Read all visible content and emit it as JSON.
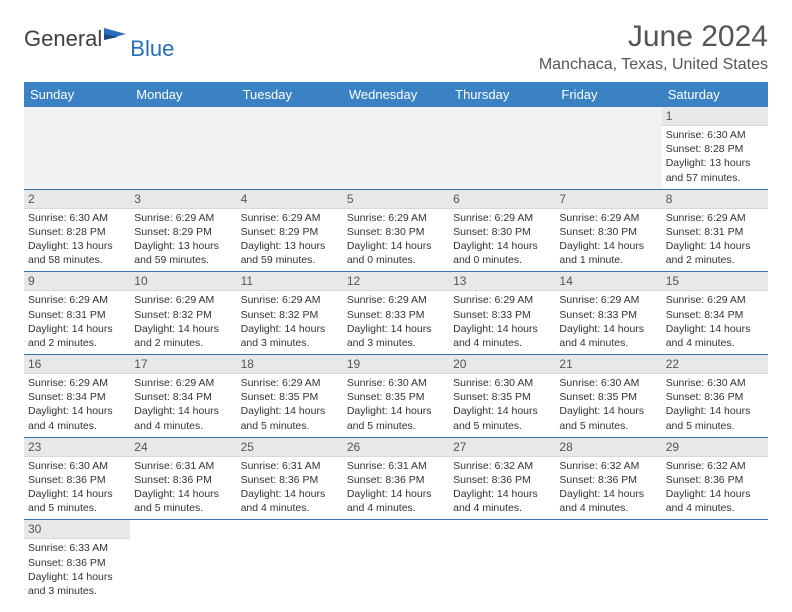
{
  "logo": {
    "main": "General",
    "accent": "Blue"
  },
  "title": "June 2024",
  "location": "Manchaca, Texas, United States",
  "colors": {
    "header_bg": "#3a82c4",
    "header_text": "#ffffff",
    "daynum_bg": "#e8e8e8",
    "body_text": "#333333",
    "row_border": "#3a6fa8",
    "logo_gray": "#404040",
    "logo_blue": "#2a6db8",
    "title_gray": "#555555"
  },
  "weekdays": [
    "Sunday",
    "Monday",
    "Tuesday",
    "Wednesday",
    "Thursday",
    "Friday",
    "Saturday"
  ],
  "weeks": [
    [
      null,
      null,
      null,
      null,
      null,
      null,
      {
        "n": "1",
        "sr": "6:30 AM",
        "ss": "8:28 PM",
        "dl": "13 hours and 57 minutes."
      }
    ],
    [
      {
        "n": "2",
        "sr": "6:30 AM",
        "ss": "8:28 PM",
        "dl": "13 hours and 58 minutes."
      },
      {
        "n": "3",
        "sr": "6:29 AM",
        "ss": "8:29 PM",
        "dl": "13 hours and 59 minutes."
      },
      {
        "n": "4",
        "sr": "6:29 AM",
        "ss": "8:29 PM",
        "dl": "13 hours and 59 minutes."
      },
      {
        "n": "5",
        "sr": "6:29 AM",
        "ss": "8:30 PM",
        "dl": "14 hours and 0 minutes."
      },
      {
        "n": "6",
        "sr": "6:29 AM",
        "ss": "8:30 PM",
        "dl": "14 hours and 0 minutes."
      },
      {
        "n": "7",
        "sr": "6:29 AM",
        "ss": "8:30 PM",
        "dl": "14 hours and 1 minute."
      },
      {
        "n": "8",
        "sr": "6:29 AM",
        "ss": "8:31 PM",
        "dl": "14 hours and 2 minutes."
      }
    ],
    [
      {
        "n": "9",
        "sr": "6:29 AM",
        "ss": "8:31 PM",
        "dl": "14 hours and 2 minutes."
      },
      {
        "n": "10",
        "sr": "6:29 AM",
        "ss": "8:32 PM",
        "dl": "14 hours and 2 minutes."
      },
      {
        "n": "11",
        "sr": "6:29 AM",
        "ss": "8:32 PM",
        "dl": "14 hours and 3 minutes."
      },
      {
        "n": "12",
        "sr": "6:29 AM",
        "ss": "8:33 PM",
        "dl": "14 hours and 3 minutes."
      },
      {
        "n": "13",
        "sr": "6:29 AM",
        "ss": "8:33 PM",
        "dl": "14 hours and 4 minutes."
      },
      {
        "n": "14",
        "sr": "6:29 AM",
        "ss": "8:33 PM",
        "dl": "14 hours and 4 minutes."
      },
      {
        "n": "15",
        "sr": "6:29 AM",
        "ss": "8:34 PM",
        "dl": "14 hours and 4 minutes."
      }
    ],
    [
      {
        "n": "16",
        "sr": "6:29 AM",
        "ss": "8:34 PM",
        "dl": "14 hours and 4 minutes."
      },
      {
        "n": "17",
        "sr": "6:29 AM",
        "ss": "8:34 PM",
        "dl": "14 hours and 4 minutes."
      },
      {
        "n": "18",
        "sr": "6:29 AM",
        "ss": "8:35 PM",
        "dl": "14 hours and 5 minutes."
      },
      {
        "n": "19",
        "sr": "6:30 AM",
        "ss": "8:35 PM",
        "dl": "14 hours and 5 minutes."
      },
      {
        "n": "20",
        "sr": "6:30 AM",
        "ss": "8:35 PM",
        "dl": "14 hours and 5 minutes."
      },
      {
        "n": "21",
        "sr": "6:30 AM",
        "ss": "8:35 PM",
        "dl": "14 hours and 5 minutes."
      },
      {
        "n": "22",
        "sr": "6:30 AM",
        "ss": "8:36 PM",
        "dl": "14 hours and 5 minutes."
      }
    ],
    [
      {
        "n": "23",
        "sr": "6:30 AM",
        "ss": "8:36 PM",
        "dl": "14 hours and 5 minutes."
      },
      {
        "n": "24",
        "sr": "6:31 AM",
        "ss": "8:36 PM",
        "dl": "14 hours and 5 minutes."
      },
      {
        "n": "25",
        "sr": "6:31 AM",
        "ss": "8:36 PM",
        "dl": "14 hours and 4 minutes."
      },
      {
        "n": "26",
        "sr": "6:31 AM",
        "ss": "8:36 PM",
        "dl": "14 hours and 4 minutes."
      },
      {
        "n": "27",
        "sr": "6:32 AM",
        "ss": "8:36 PM",
        "dl": "14 hours and 4 minutes."
      },
      {
        "n": "28",
        "sr": "6:32 AM",
        "ss": "8:36 PM",
        "dl": "14 hours and 4 minutes."
      },
      {
        "n": "29",
        "sr": "6:32 AM",
        "ss": "8:36 PM",
        "dl": "14 hours and 4 minutes."
      }
    ],
    [
      {
        "n": "30",
        "sr": "6:33 AM",
        "ss": "8:36 PM",
        "dl": "14 hours and 3 minutes."
      },
      null,
      null,
      null,
      null,
      null,
      null
    ]
  ],
  "labels": {
    "sunrise": "Sunrise:",
    "sunset": "Sunset:",
    "daylight": "Daylight:"
  }
}
